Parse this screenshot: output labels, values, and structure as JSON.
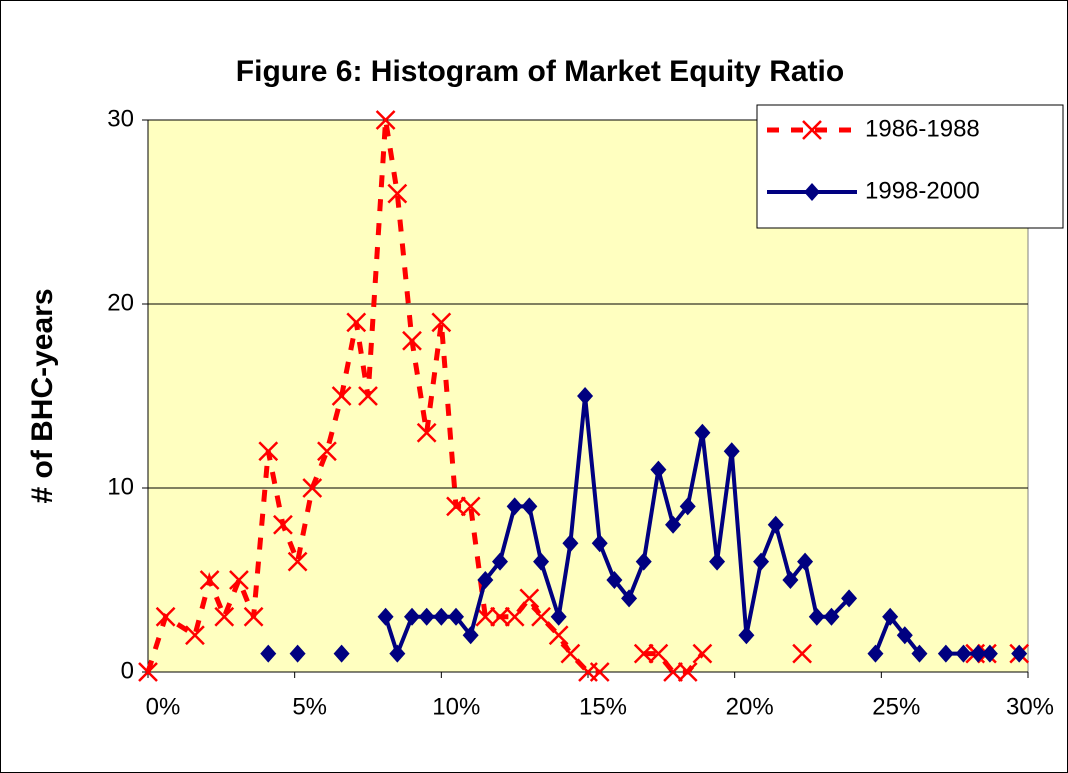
{
  "chart_data": {
    "type": "line",
    "title": "Figure 6: Histogram of Market Equity Ratio",
    "y_label": "# of BHC-years",
    "xlim": [
      0,
      30
    ],
    "ylim": [
      0,
      30
    ],
    "xticks": [
      {
        "value": 0,
        "label": "0%"
      },
      {
        "value": 5,
        "label": "5%"
      },
      {
        "value": 10,
        "label": "10%"
      },
      {
        "value": 15,
        "label": "15%"
      },
      {
        "value": 20,
        "label": "20%"
      },
      {
        "value": 25,
        "label": "25%"
      },
      {
        "value": 30,
        "label": "30%"
      }
    ],
    "yticks": [
      0,
      10,
      20,
      30
    ],
    "grid": true,
    "legend": "upper right",
    "plot_background": "#ffffc0",
    "series": [
      {
        "name": "1986-1988",
        "color": "#ff0000",
        "dash": true,
        "marker": "x",
        "x": [
          0,
          0.6,
          1.6,
          2.1,
          2.6,
          3.1,
          3.6,
          4.1,
          4.6,
          5.1,
          5.6,
          6.1,
          6.6,
          7.1,
          7.5,
          8.1,
          8.5,
          9.0,
          9.5,
          10.0,
          10.5,
          11.0,
          11.5,
          12.0,
          12.5,
          13.0,
          13.4,
          14.0,
          14.4,
          15.0,
          15.4,
          null,
          16.9,
          17.4,
          17.9,
          18.4,
          18.9,
          null,
          22.3,
          null,
          28.2,
          28.6,
          null,
          29.7
        ],
        "values": [
          0,
          3,
          2,
          5,
          3,
          5,
          3,
          12,
          8,
          6,
          10,
          12,
          15,
          19,
          15,
          30,
          26,
          18,
          13,
          19,
          9,
          9,
          3,
          3,
          3,
          4,
          3,
          2,
          1,
          0,
          0,
          null,
          1,
          1,
          0,
          0,
          1,
          null,
          1,
          null,
          1,
          1,
          null,
          1
        ]
      },
      {
        "name": "1998-2000",
        "color": "#000080",
        "dash": false,
        "marker": "diamond",
        "x": [
          4.1,
          null,
          5.1,
          null,
          6.6,
          null,
          8.1,
          8.5,
          9.0,
          9.5,
          10.0,
          10.5,
          11.0,
          11.5,
          12.0,
          12.5,
          13.0,
          13.4,
          14.0,
          14.4,
          14.9,
          15.4,
          15.9,
          16.4,
          16.9,
          17.4,
          17.9,
          18.4,
          18.9,
          19.4,
          19.9,
          20.4,
          20.9,
          21.4,
          21.9,
          22.4,
          22.8,
          23.3,
          23.9,
          null,
          24.8,
          25.3,
          25.8,
          26.3,
          null,
          27.2,
          27.8,
          28.3,
          28.7,
          null,
          29.7
        ],
        "values": [
          1,
          null,
          1,
          null,
          1,
          null,
          3,
          1,
          3,
          3,
          3,
          3,
          2,
          5,
          6,
          9,
          9,
          6,
          3,
          7,
          15,
          7,
          5,
          4,
          6,
          11,
          8,
          9,
          13,
          6,
          12,
          2,
          6,
          8,
          5,
          6,
          3,
          3,
          4,
          null,
          1,
          3,
          2,
          1,
          null,
          1,
          1,
          1,
          1,
          null,
          1
        ]
      }
    ]
  }
}
